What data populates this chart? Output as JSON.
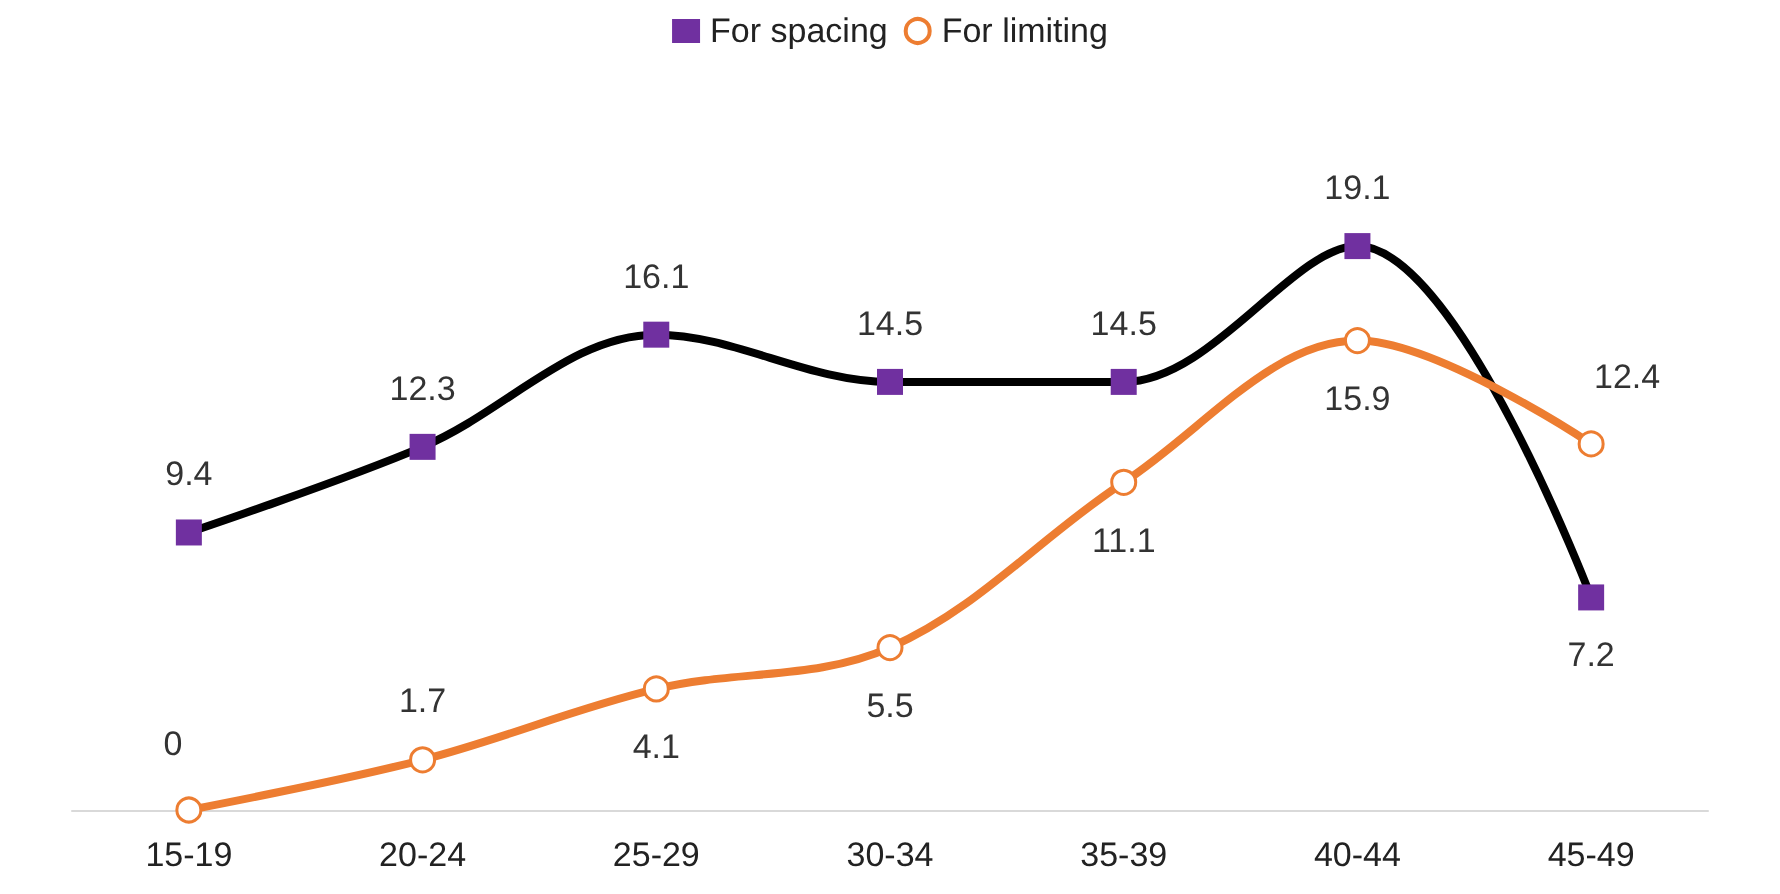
{
  "chart_data": {
    "type": "line",
    "categories": [
      "15-19",
      "20-24",
      "25-29",
      "30-34",
      "35-39",
      "40-44",
      "45-49"
    ],
    "series": [
      {
        "name": "For spacing",
        "color": "#000000",
        "colors": [
          "#7030a0",
          "#7030a0",
          "#7030a0",
          "#7030a0",
          "#7030a0",
          "#7030a0",
          "#7030a0"
        ],
        "marker": "square",
        "values": [
          9.4,
          12.3,
          16.1,
          14.5,
          14.5,
          19.1,
          7.2
        ]
      },
      {
        "name": "For limiting",
        "color": "#ed7d31",
        "marker": "circle",
        "values": [
          0,
          1.7,
          4.1,
          5.5,
          11.1,
          15.9,
          12.4
        ]
      }
    ],
    "data_labels": true,
    "legend": "top",
    "grid": false
  }
}
